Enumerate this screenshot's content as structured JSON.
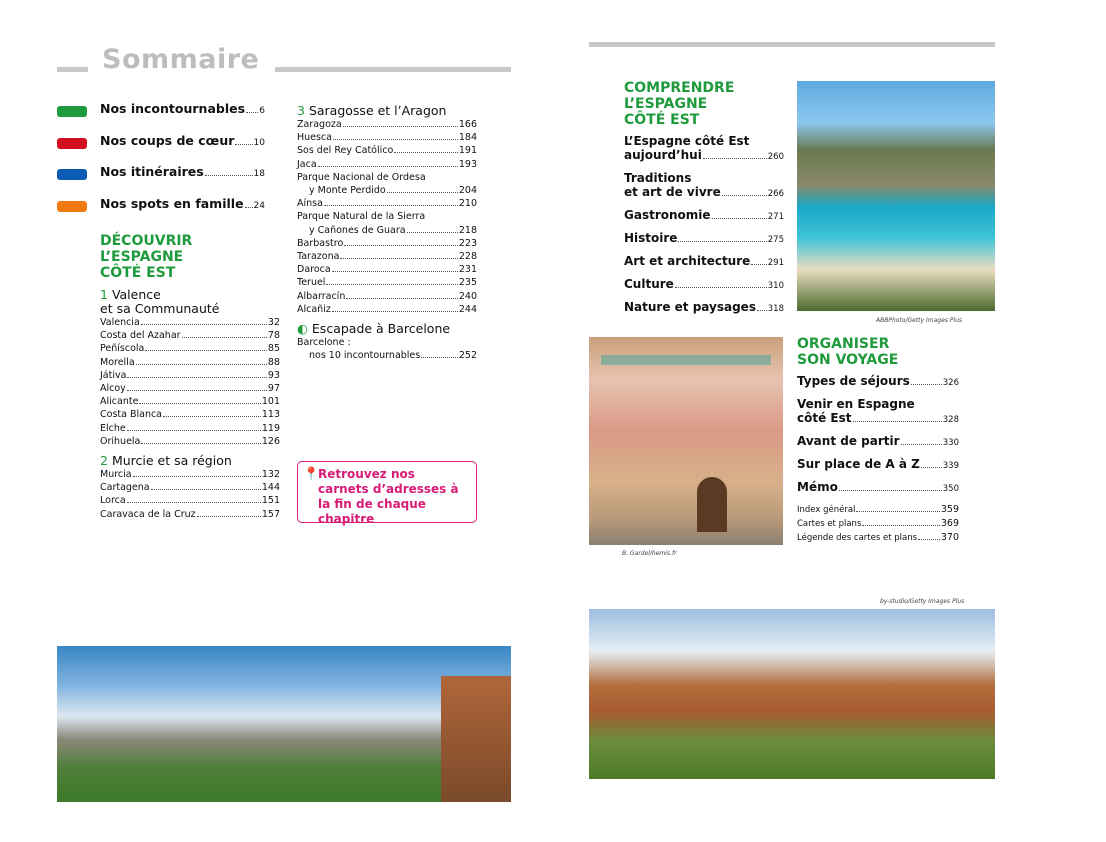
{
  "title": "Sommaire",
  "highlights": [
    {
      "label": "Nos incontournables",
      "page": "6",
      "color": "#1f9a3c"
    },
    {
      "label": "Nos coups de cœur",
      "page": "10",
      "color": "#d0101c"
    },
    {
      "label": "Nos itinéraires",
      "page": "18",
      "color": "#0b5cb5"
    },
    {
      "label": "Nos spots en famille",
      "page": "24",
      "color": "#f07a10"
    }
  ],
  "discover": {
    "heading": [
      "DÉCOUVRIR",
      "L’ESPAGNE",
      "CÔTÉ EST"
    ],
    "chapters": [
      {
        "num": "1",
        "title": "Valence",
        "title2": "et sa Communauté",
        "items": [
          [
            "Valencia",
            "32"
          ],
          [
            "Costa del Azahar",
            "78"
          ],
          [
            "Peñíscola",
            "85"
          ],
          [
            "Morella",
            "88"
          ],
          [
            "Játiva",
            "93"
          ],
          [
            "Alcoy",
            "97"
          ],
          [
            "Alicante",
            "101"
          ],
          [
            "Costa Blanca",
            "113"
          ],
          [
            "Elche",
            "119"
          ],
          [
            "Orihuela",
            "126"
          ]
        ]
      },
      {
        "num": "2",
        "title": "Murcie et sa région",
        "items": [
          [
            "Murcia",
            "132"
          ],
          [
            "Cartagena",
            "144"
          ],
          [
            "Lorca",
            "151"
          ],
          [
            "Caravaca de la Cruz",
            "157"
          ]
        ]
      },
      {
        "num": "3",
        "title": "Saragosse et l’Aragon",
        "items": [
          [
            "Zaragoza",
            "166"
          ],
          [
            "Huesca",
            "184"
          ],
          [
            "Sos del Rey Católico",
            "191"
          ],
          [
            "Jaca",
            "193"
          ],
          [
            "Parque Nacional de Ordesa|y Monte Perdido",
            "204"
          ],
          [
            "Aínsa",
            "210"
          ],
          [
            "Parque Natural de la Sierra|y Cañones de Guara",
            "218"
          ],
          [
            "Barbastro",
            "223"
          ],
          [
            "Tarazona",
            "228"
          ],
          [
            "Daroca",
            "231"
          ],
          [
            "Teruel",
            "235"
          ],
          [
            "Albarracín",
            "240"
          ],
          [
            "Alcañiz",
            "244"
          ]
        ]
      }
    ],
    "escapade": {
      "title": "Escapade à Barcelone",
      "line1": "Barcelone :",
      "line2": "nos 10 incontournables",
      "page": "252"
    }
  },
  "callout": "Retrouvez nos carnets d’adresses à la fin de chaque chapitre",
  "understand": {
    "heading": [
      "COMPRENDRE",
      "L’ESPAGNE",
      "CÔTÉ EST"
    ],
    "items": [
      [
        "L’Espagne côté Est|aujourd’hui",
        "260"
      ],
      [
        "Traditions|et art de vivre",
        "266"
      ],
      [
        "Gastronomie",
        "271"
      ],
      [
        "Histoire",
        "275"
      ],
      [
        "Art et architecture",
        "291"
      ],
      [
        "Culture",
        "310"
      ],
      [
        "Nature et paysages",
        "318"
      ]
    ]
  },
  "organise": {
    "heading": [
      "ORGANISER",
      "SON VOYAGE"
    ],
    "items": [
      [
        "Types de séjours",
        "326"
      ],
      [
        "Venir en Espagne|côté Est",
        "328"
      ],
      [
        "Avant de partir",
        "330"
      ],
      [
        "Sur place de A à Z",
        "339"
      ],
      [
        "Mémo",
        "350"
      ]
    ],
    "small_items": [
      [
        "Index général",
        "359"
      ],
      [
        "Cartes et plans",
        "369"
      ],
      [
        "Légende des cartes et plans",
        "370"
      ]
    ]
  },
  "credits": {
    "cove": "ABBPhoto/Getty Images Plus",
    "building": "B. Gardel/hemis.fr",
    "rocks": "by-studio/Getty Images Plus"
  }
}
